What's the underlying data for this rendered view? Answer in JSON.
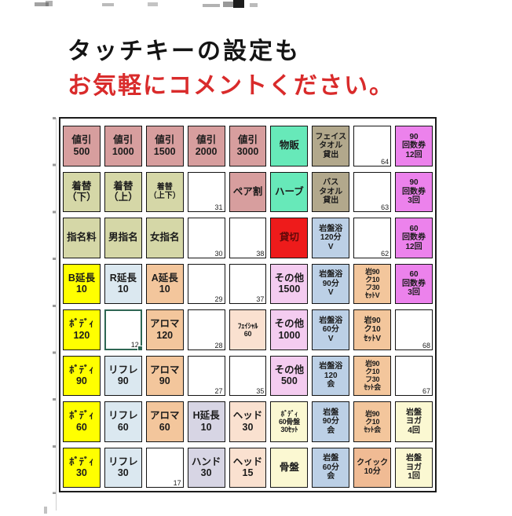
{
  "header": {
    "title_line1": "タッチキーの設定も",
    "title_line2": "お気軽にコメントください。",
    "title_color": "#141414",
    "subtitle_color": "#d92b2b"
  },
  "colors": {
    "rose": "#d79e9e",
    "olive": "#d5d7a7",
    "mint": "#67e9b9",
    "taupe": "#b2a88c",
    "orchid": "#ec82ec",
    "red": "#ee1b1b",
    "red_text": "#5f0909",
    "steel": "#bcd0e6",
    "peach": "#f3c69c",
    "yellow": "#ffff00",
    "paleblue": "#dbe8f0",
    "lilac": "#f4ccf0",
    "lavender": "#d7d5e4",
    "peachlight": "#fae1d0",
    "cream": "#fbf8d2",
    "salmon": "#f0bb94",
    "selection": "#2e6653"
  },
  "grid": {
    "rows": [
      [
        {
          "label": "値引\n500",
          "color": "rose"
        },
        {
          "label": "値引\n1000",
          "color": "rose"
        },
        {
          "label": "値引\n1500",
          "color": "rose"
        },
        {
          "label": "値引\n2000",
          "color": "rose"
        },
        {
          "label": "値引\n3000",
          "color": "rose"
        },
        {
          "label": "物販",
          "color": "mint"
        },
        {
          "label": "フェイス\nタオル\n貸出",
          "color": "taupe",
          "fs": "sm"
        },
        {
          "num": "64"
        },
        {
          "label": "90\n回数券\n12回",
          "color": "orchid",
          "fs": "sm"
        }
      ],
      [
        {
          "label": "着替\n（下）",
          "color": "olive"
        },
        {
          "label": "着替\n（上）",
          "color": "olive"
        },
        {
          "label": "着替\n（上下）",
          "color": "olive",
          "fs": "sm"
        },
        {
          "num": "31"
        },
        {
          "label": "ペア割",
          "color": "rose"
        },
        {
          "label": "ハーブ",
          "color": "mint"
        },
        {
          "label": "バス\nタオル\n貸出",
          "color": "taupe",
          "fs": "sm"
        },
        {
          "num": "63"
        },
        {
          "label": "90\n回数券\n3回",
          "color": "orchid",
          "fs": "sm"
        }
      ],
      [
        {
          "label": "指名料",
          "color": "olive"
        },
        {
          "label": "男指名",
          "color": "olive"
        },
        {
          "label": "女指名",
          "color": "olive"
        },
        {
          "num": "30"
        },
        {
          "num": "38"
        },
        {
          "label": "貸切",
          "color": "red"
        },
        {
          "label": "岩盤浴\n120分\nV",
          "color": "steel",
          "fs": "sm"
        },
        {
          "num": "62"
        },
        {
          "label": "60\n回数券\n12回",
          "color": "orchid",
          "fs": "sm"
        }
      ],
      [
        {
          "label": "B延長\n10",
          "color": "yellow"
        },
        {
          "label": "R延長\n10",
          "color": "paleblue"
        },
        {
          "label": "A延長\n10",
          "color": "peach"
        },
        {
          "num": "29"
        },
        {
          "num": "37"
        },
        {
          "label": "その他\n1500",
          "color": "lilac"
        },
        {
          "label": "岩盤浴\n90分\nV",
          "color": "steel",
          "fs": "sm"
        },
        {
          "label": "岩90\nク10\nフ30\nｾｯﾄV",
          "color": "peach",
          "fs": "xs"
        },
        {
          "label": "60\n回数券\n3回",
          "color": "orchid",
          "fs": "sm"
        }
      ],
      [
        {
          "label": "ﾎﾞﾃﾞｨ\n120",
          "color": "yellow"
        },
        {
          "num": "12",
          "selected": true
        },
        {
          "label": "アロマ\n120",
          "color": "peach"
        },
        {
          "num": "28"
        },
        {
          "label": "ﾌｪｲｼｬﾙ\n60",
          "color": "peachlight",
          "fs": "xs"
        },
        {
          "label": "その他\n1000",
          "color": "lilac"
        },
        {
          "label": "岩盤浴\n60分\nV",
          "color": "steel",
          "fs": "sm"
        },
        {
          "label": "岩90\nク10\nｾｯﾄV",
          "color": "peach",
          "fs": "sm"
        },
        {
          "num": "68"
        }
      ],
      [
        {
          "label": "ﾎﾞﾃﾞｨ\n90",
          "color": "yellow"
        },
        {
          "label": "リフレ\n90",
          "color": "paleblue"
        },
        {
          "label": "アロマ\n90",
          "color": "peach"
        },
        {
          "num": "27"
        },
        {
          "num": "35"
        },
        {
          "label": "その他\n500",
          "color": "lilac"
        },
        {
          "label": "岩盤浴\n120\n会",
          "color": "steel",
          "fs": "sm"
        },
        {
          "label": "岩90\nク10\nフ30\nｾｯﾄ会",
          "color": "peach",
          "fs": "xs"
        },
        {
          "num": "67"
        }
      ],
      [
        {
          "label": "ﾎﾞﾃﾞｨ\n60",
          "color": "yellow"
        },
        {
          "label": "リフレ\n60",
          "color": "paleblue"
        },
        {
          "label": "アロマ\n60",
          "color": "peach"
        },
        {
          "label": "H延長\n10",
          "color": "lavender"
        },
        {
          "label": "ヘッド\n30",
          "color": "peachlight"
        },
        {
          "label": "ﾎﾞﾃﾞｨ\n60骨盤\n30ｾｯﾄ",
          "color": "cream",
          "fs": "xs"
        },
        {
          "label": "岩盤\n90分\n会",
          "color": "steel",
          "fs": "sm"
        },
        {
          "label": "岩90\nク10\nｾｯﾄ会",
          "color": "peach",
          "fs": "xs"
        },
        {
          "label": "岩盤\nヨガ\n4回",
          "color": "cream",
          "fs": "sm"
        }
      ],
      [
        {
          "label": "ﾎﾞﾃﾞｨ\n30",
          "color": "yellow"
        },
        {
          "label": "リフレ\n30",
          "color": "paleblue"
        },
        {
          "num": "17"
        },
        {
          "label": "ハンド\n30",
          "color": "lavender"
        },
        {
          "label": "ヘッド\n15",
          "color": "peachlight"
        },
        {
          "label": "骨盤",
          "color": "cream"
        },
        {
          "label": "岩盤\n60分\n会",
          "color": "steel",
          "fs": "sm"
        },
        {
          "label": "クイック\n10分",
          "color": "salmon",
          "fs": "sm"
        },
        {
          "label": "岩盤\nヨガ\n1回",
          "color": "cream",
          "fs": "sm"
        }
      ]
    ]
  }
}
